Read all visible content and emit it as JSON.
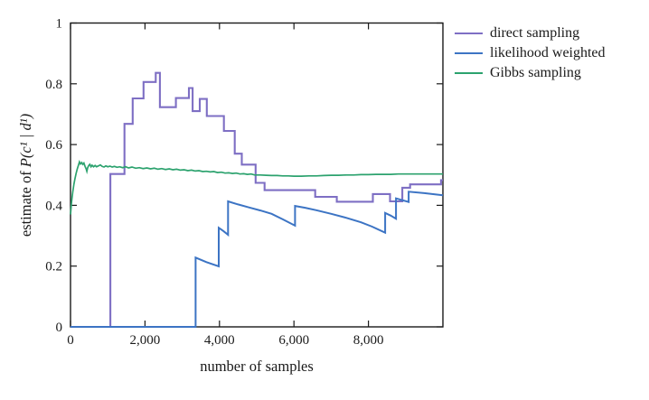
{
  "figure": {
    "xlabel": "number of samples",
    "ylabel_prefix": "estimate of ",
    "ylabel_math": "P(c¹ | d¹)"
  },
  "chart_data": {
    "type": "line",
    "title": "",
    "xlabel": "number of samples",
    "ylabel": "estimate of P(c¹ | d¹)",
    "xlim": [
      0,
      10000
    ],
    "ylim": [
      0,
      1
    ],
    "grid": false,
    "legend_position": "outside-right-top",
    "frame_color": "#1a1a1a",
    "x_ticks": {
      "values": [
        0,
        2000,
        4000,
        6000,
        8000
      ],
      "labels": [
        "0",
        "2,000",
        "4,000",
        "6,000",
        "8,000"
      ]
    },
    "y_ticks": {
      "values": [
        0,
        0.2,
        0.4,
        0.6,
        0.8,
        1
      ],
      "labels": [
        "0",
        "0.2",
        "0.4",
        "0.6",
        "0.8",
        "1"
      ]
    },
    "series": [
      {
        "name": "direct sampling",
        "color": "#7E6FC4",
        "stroke_width": 2.1,
        "points": [
          [
            0,
            0
          ],
          [
            1070,
            0
          ],
          [
            1070,
            0.503
          ],
          [
            1450,
            0.503
          ],
          [
            1450,
            0.668
          ],
          [
            1670,
            0.668
          ],
          [
            1670,
            0.752
          ],
          [
            1960,
            0.752
          ],
          [
            1960,
            0.806
          ],
          [
            2290,
            0.806
          ],
          [
            2290,
            0.836
          ],
          [
            2400,
            0.836
          ],
          [
            2400,
            0.723
          ],
          [
            2830,
            0.723
          ],
          [
            2830,
            0.753
          ],
          [
            3180,
            0.753
          ],
          [
            3180,
            0.786
          ],
          [
            3280,
            0.786
          ],
          [
            3280,
            0.71
          ],
          [
            3470,
            0.71
          ],
          [
            3470,
            0.75
          ],
          [
            3660,
            0.75
          ],
          [
            3660,
            0.694
          ],
          [
            4120,
            0.694
          ],
          [
            4120,
            0.645
          ],
          [
            4410,
            0.645
          ],
          [
            4410,
            0.57
          ],
          [
            4600,
            0.57
          ],
          [
            4600,
            0.534
          ],
          [
            4970,
            0.534
          ],
          [
            4970,
            0.474
          ],
          [
            5210,
            0.474
          ],
          [
            5210,
            0.45
          ],
          [
            6570,
            0.45
          ],
          [
            6570,
            0.428
          ],
          [
            7150,
            0.428
          ],
          [
            7150,
            0.412
          ],
          [
            8120,
            0.412
          ],
          [
            8120,
            0.437
          ],
          [
            8580,
            0.437
          ],
          [
            8580,
            0.413
          ],
          [
            8910,
            0.413
          ],
          [
            8910,
            0.458
          ],
          [
            9120,
            0.458
          ],
          [
            9120,
            0.469
          ],
          [
            9950,
            0.469
          ],
          [
            9950,
            0.483
          ],
          [
            10000,
            0.483
          ]
        ]
      },
      {
        "name": "likelihood weighted",
        "color": "#3C74C4",
        "stroke_width": 2.0,
        "points": [
          [
            0,
            0
          ],
          [
            3360,
            0
          ],
          [
            3360,
            0.228
          ],
          [
            3650,
            0.213
          ],
          [
            3980,
            0.199
          ],
          [
            3980,
            0.326
          ],
          [
            4100,
            0.316
          ],
          [
            4230,
            0.303
          ],
          [
            4230,
            0.413
          ],
          [
            4500,
            0.403
          ],
          [
            4800,
            0.393
          ],
          [
            5100,
            0.383
          ],
          [
            5400,
            0.372
          ],
          [
            5700,
            0.354
          ],
          [
            6030,
            0.333
          ],
          [
            6030,
            0.398
          ],
          [
            6300,
            0.392
          ],
          [
            6600,
            0.384
          ],
          [
            7000,
            0.372
          ],
          [
            7400,
            0.359
          ],
          [
            7800,
            0.344
          ],
          [
            8100,
            0.33
          ],
          [
            8450,
            0.31
          ],
          [
            8450,
            0.375
          ],
          [
            8600,
            0.366
          ],
          [
            8740,
            0.356
          ],
          [
            8740,
            0.423
          ],
          [
            9080,
            0.411
          ],
          [
            9080,
            0.445
          ],
          [
            9500,
            0.44
          ],
          [
            10000,
            0.433
          ]
        ]
      },
      {
        "name": "Gibbs sampling",
        "color": "#2CA26E",
        "stroke_width": 1.7,
        "points": [
          [
            0,
            0.37
          ],
          [
            30,
            0.412
          ],
          [
            60,
            0.444
          ],
          [
            90,
            0.468
          ],
          [
            120,
            0.487
          ],
          [
            150,
            0.505
          ],
          [
            180,
            0.519
          ],
          [
            210,
            0.531
          ],
          [
            240,
            0.543
          ],
          [
            270,
            0.536
          ],
          [
            300,
            0.541
          ],
          [
            330,
            0.535
          ],
          [
            360,
            0.539
          ],
          [
            390,
            0.528
          ],
          [
            420,
            0.52
          ],
          [
            440,
            0.512
          ],
          [
            460,
            0.524
          ],
          [
            490,
            0.531
          ],
          [
            520,
            0.535
          ],
          [
            550,
            0.527
          ],
          [
            580,
            0.532
          ],
          [
            620,
            0.527
          ],
          [
            660,
            0.531
          ],
          [
            700,
            0.527
          ],
          [
            750,
            0.53
          ],
          [
            800,
            0.533
          ],
          [
            850,
            0.528
          ],
          [
            900,
            0.526
          ],
          [
            950,
            0.53
          ],
          [
            1000,
            0.527
          ],
          [
            1060,
            0.529
          ],
          [
            1120,
            0.526
          ],
          [
            1180,
            0.528
          ],
          [
            1250,
            0.525
          ],
          [
            1320,
            0.527
          ],
          [
            1400,
            0.524
          ],
          [
            1480,
            0.527
          ],
          [
            1560,
            0.523
          ],
          [
            1650,
            0.526
          ],
          [
            1750,
            0.522
          ],
          [
            1850,
            0.524
          ],
          [
            1950,
            0.521
          ],
          [
            2050,
            0.523
          ],
          [
            2150,
            0.52
          ],
          [
            2250,
            0.522
          ],
          [
            2350,
            0.519
          ],
          [
            2450,
            0.521
          ],
          [
            2550,
            0.518
          ],
          [
            2650,
            0.52
          ],
          [
            2750,
            0.517
          ],
          [
            2850,
            0.519
          ],
          [
            2950,
            0.516
          ],
          [
            3050,
            0.517
          ],
          [
            3150,
            0.514
          ],
          [
            3250,
            0.516
          ],
          [
            3350,
            0.513
          ],
          [
            3450,
            0.514
          ],
          [
            3550,
            0.511
          ],
          [
            3650,
            0.512
          ],
          [
            3750,
            0.51
          ],
          [
            3850,
            0.511
          ],
          [
            3950,
            0.508
          ],
          [
            4050,
            0.509
          ],
          [
            4150,
            0.506
          ],
          [
            4250,
            0.507
          ],
          [
            4350,
            0.505
          ],
          [
            4450,
            0.506
          ],
          [
            4550,
            0.503
          ],
          [
            4650,
            0.504
          ],
          [
            4750,
            0.502
          ],
          [
            4850,
            0.503
          ],
          [
            4950,
            0.5
          ],
          [
            5100,
            0.5
          ],
          [
            5250,
            0.499
          ],
          [
            5400,
            0.498
          ],
          [
            5550,
            0.498
          ],
          [
            5700,
            0.497
          ],
          [
            5850,
            0.497
          ],
          [
            6000,
            0.496
          ],
          [
            6200,
            0.496
          ],
          [
            6400,
            0.497
          ],
          [
            6600,
            0.497
          ],
          [
            6800,
            0.498
          ],
          [
            7000,
            0.499
          ],
          [
            7200,
            0.499
          ],
          [
            7400,
            0.5
          ],
          [
            7600,
            0.5
          ],
          [
            7800,
            0.501
          ],
          [
            8000,
            0.501
          ],
          [
            8200,
            0.502
          ],
          [
            8400,
            0.502
          ],
          [
            8600,
            0.502
          ],
          [
            8800,
            0.503
          ],
          [
            9000,
            0.503
          ],
          [
            9200,
            0.503
          ],
          [
            9400,
            0.503
          ],
          [
            9600,
            0.503
          ],
          [
            9800,
            0.503
          ],
          [
            10000,
            0.503
          ]
        ]
      }
    ]
  }
}
